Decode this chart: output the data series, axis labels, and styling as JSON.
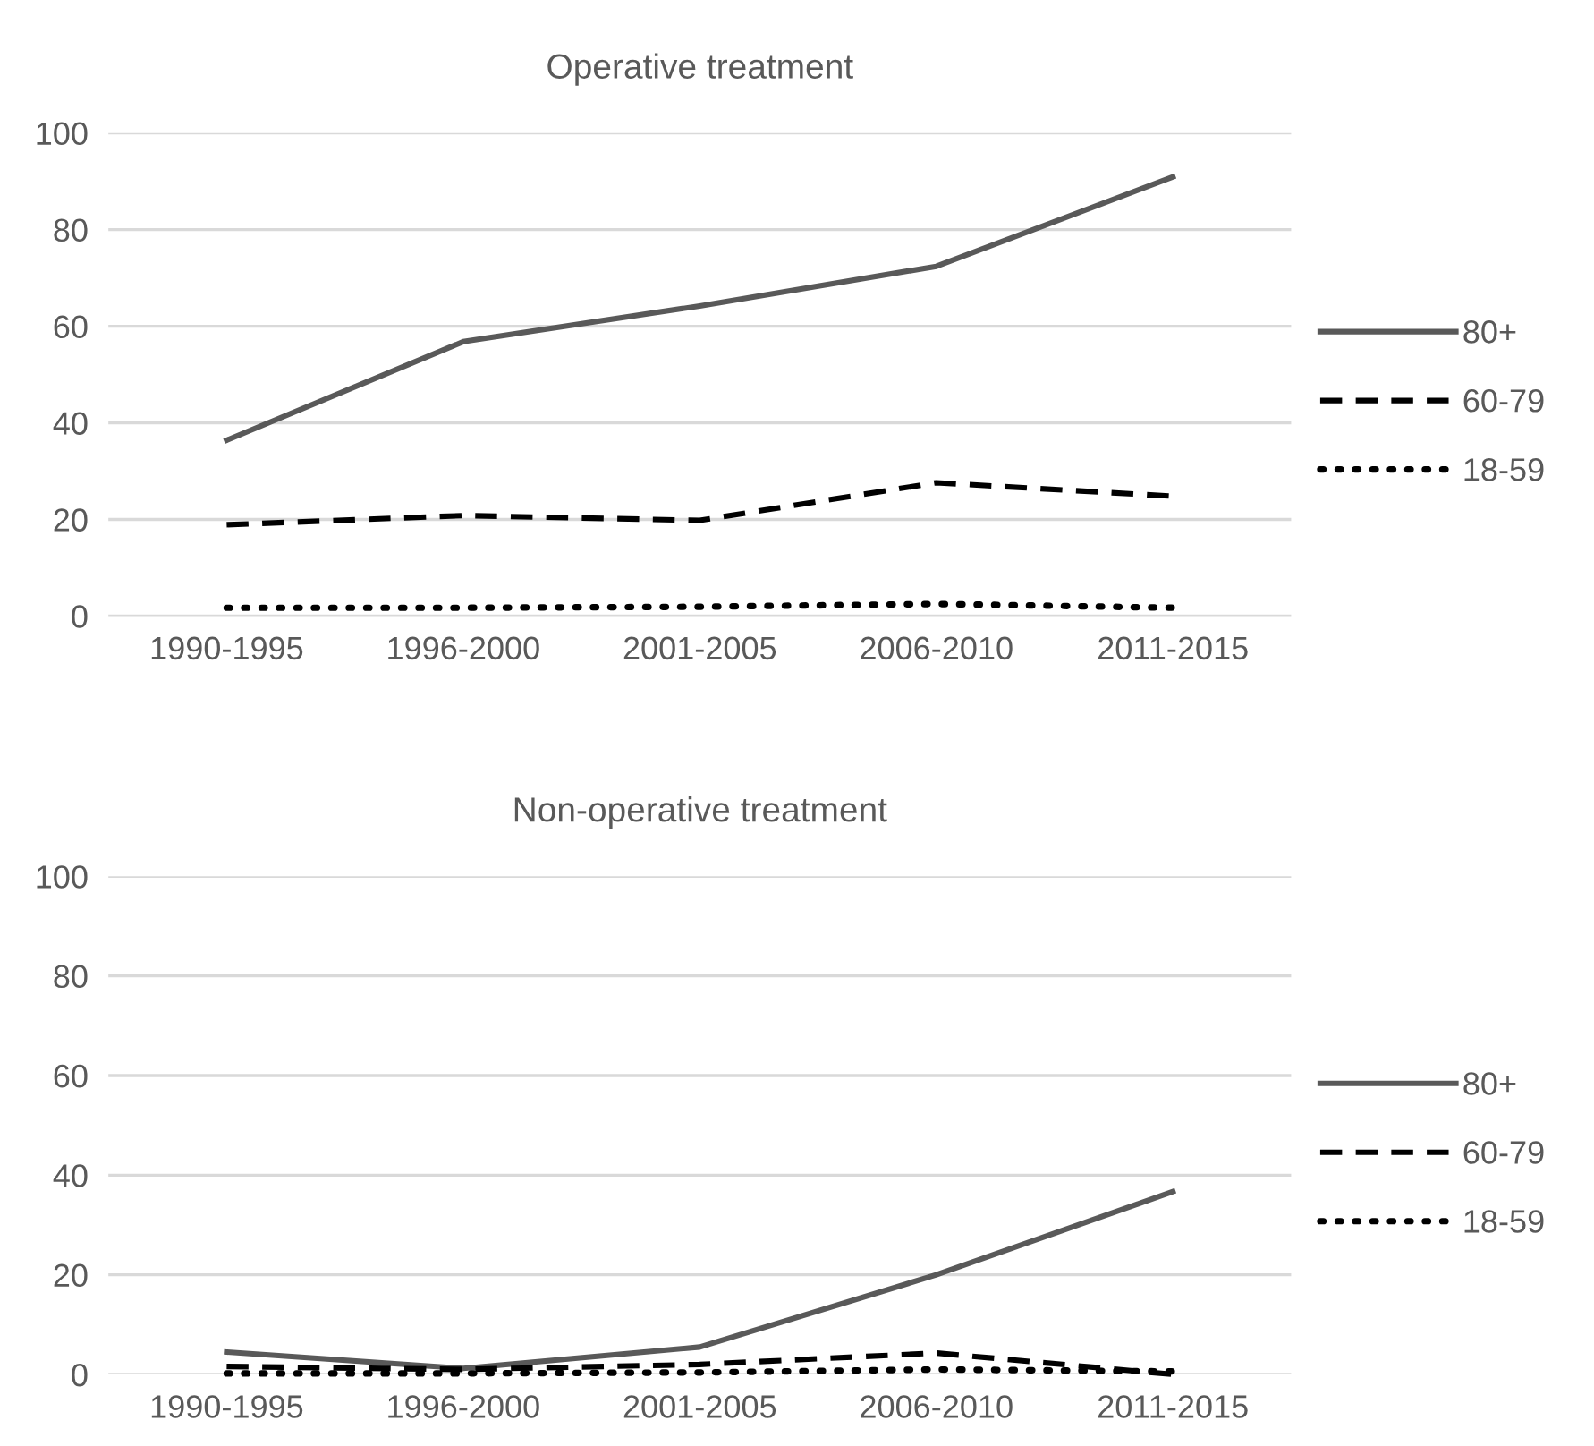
{
  "chart_data": [
    {
      "type": "line",
      "title": "Operative treatment",
      "categories": [
        "1990-1995",
        "1996-2000",
        "2001-2005",
        "2006-2010",
        "2011-2015"
      ],
      "series": [
        {
          "name": "80+",
          "color": "#595959",
          "line_style": "solid",
          "values": [
            36.4,
            56.8,
            64.2,
            72.4,
            90.9
          ]
        },
        {
          "name": "60-79",
          "color": "#000000",
          "line_style": "dashed",
          "values": [
            18.9,
            20.8,
            19.8,
            27.6,
            24.8
          ]
        },
        {
          "name": "18-59",
          "color": "#000000",
          "line_style": "dotted",
          "values": [
            1.7,
            1.7,
            1.9,
            2.5,
            1.7
          ]
        }
      ],
      "ylim": [
        0,
        100
      ],
      "yticks": [
        0,
        20,
        40,
        60,
        80,
        100
      ],
      "grid": "y",
      "legend": "right",
      "marker": "none"
    },
    {
      "type": "line",
      "title": "Non-operative treatment",
      "categories": [
        "1990-1995",
        "1996-2000",
        "2001-2005",
        "2006-2010",
        "2011-2015"
      ],
      "series": [
        {
          "name": "80+",
          "color": "#595959",
          "line_style": "solid",
          "values": [
            4.5,
            1.2,
            5.5,
            20,
            36.7
          ]
        },
        {
          "name": "60-79",
          "color": "#000000",
          "line_style": "dashed",
          "values": [
            1.6,
            1.0,
            2.0,
            4.3,
            0
          ]
        },
        {
          "name": "18-59",
          "color": "#000000",
          "line_style": "dotted",
          "values": [
            0.2,
            0.2,
            0.4,
            1.0,
            0.6
          ]
        }
      ],
      "ylim": [
        0,
        100
      ],
      "yticks": [
        0,
        20,
        40,
        60,
        80,
        100
      ],
      "grid": "y",
      "legend": "right",
      "marker": "none"
    }
  ]
}
